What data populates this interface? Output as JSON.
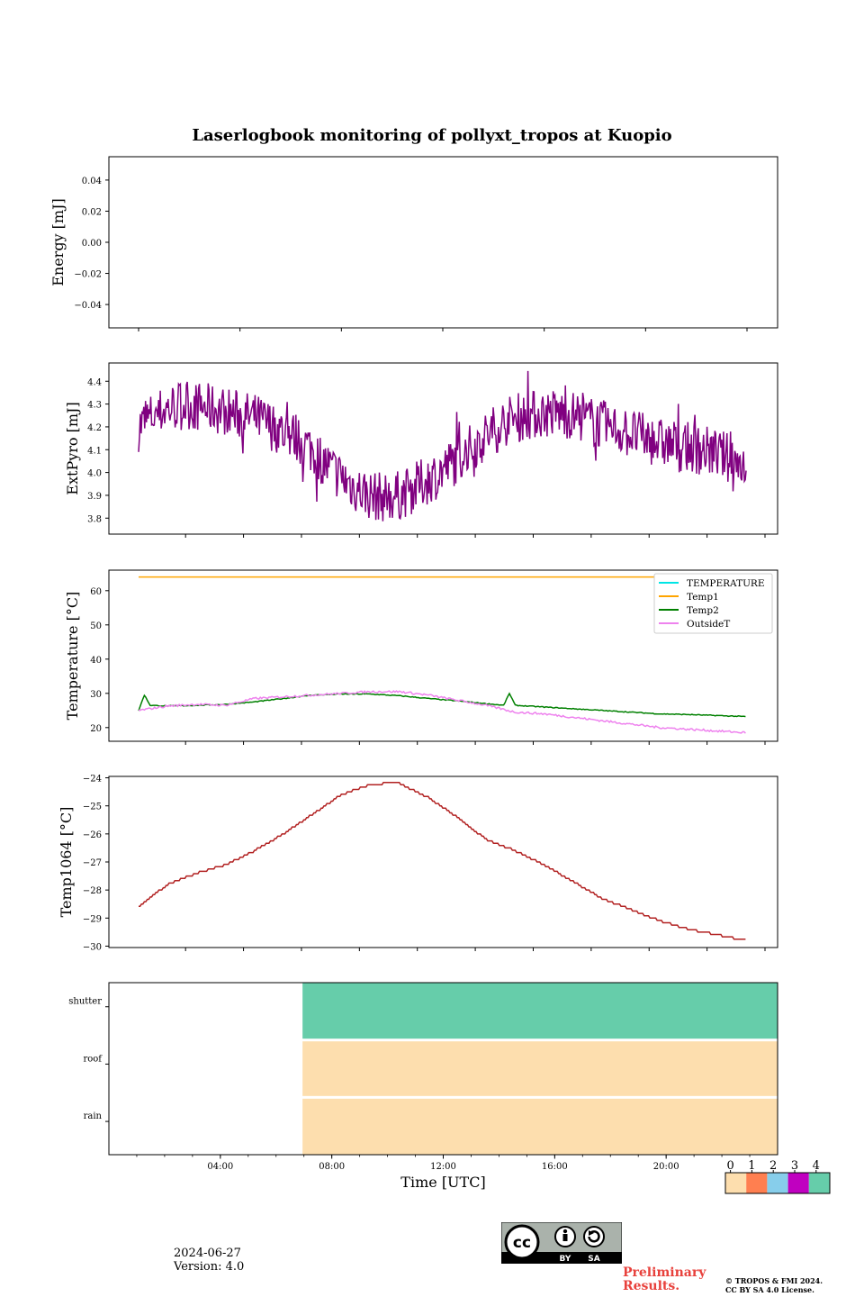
{
  "title": "Laserlogbook monitoring of pollyxt_tropos at Kuopio",
  "footer": {
    "date": "2024-06-27",
    "version": "Version: 4.0",
    "preliminary_line1": "Preliminary",
    "preliminary_line2": "Results.",
    "copyright_line1": "© TROPOS & FMI 2024.",
    "copyright_line2": "CC BY SA 4.0 License.",
    "license_badge_by": "BY",
    "license_badge_sa": "SA",
    "license_badge_cc": "cc"
  },
  "chart_data": [
    {
      "type": "line",
      "ylabel": "Energy [mJ]",
      "ylim": [
        -0.055,
        0.055
      ],
      "yticks": [
        0.04,
        0.02,
        0.0,
        -0.02,
        -0.04
      ],
      "ytick_labels": [
        "0.04",
        "0.02",
        "0.00",
        "−0.02",
        "−0.04"
      ],
      "series": []
    },
    {
      "type": "line",
      "ylabel": "ExtPyro [mJ]",
      "ylim": [
        3.73,
        4.48
      ],
      "yticks": [
        4.4,
        4.3,
        4.2,
        4.1,
        4.0,
        3.9,
        3.8
      ],
      "ytick_labels": [
        "4.4",
        "4.3",
        "4.2",
        "4.1",
        "4.0",
        "3.9",
        "3.8"
      ],
      "color": "#800080",
      "series": [
        {
          "x_hours": [
            1.0,
            1.5,
            2.0,
            2.5,
            3.0,
            3.5,
            4.0,
            4.5,
            5.0,
            5.5,
            6.0,
            6.5,
            7.0,
            7.5,
            8.0,
            8.5,
            9.0,
            9.5,
            10.0,
            10.5,
            11.0,
            11.5,
            12.0,
            12.5,
            13.0,
            13.5,
            14.0,
            14.5,
            15.0,
            15.5,
            16.0,
            16.5,
            17.0,
            17.5,
            18.0,
            18.5,
            19.0,
            19.5,
            20.0,
            20.5,
            21.0,
            21.5,
            22.0
          ],
          "values": [
            4.2,
            4.25,
            4.28,
            4.3,
            4.29,
            4.28,
            4.27,
            4.25,
            4.24,
            4.21,
            4.18,
            4.15,
            4.1,
            4.03,
            3.98,
            3.93,
            3.9,
            3.89,
            3.9,
            3.93,
            3.97,
            4.01,
            4.06,
            4.11,
            4.16,
            4.21,
            4.24,
            4.25,
            4.26,
            4.26,
            4.25,
            4.23,
            4.21,
            4.19,
            4.17,
            4.15,
            4.13,
            4.12,
            4.11,
            4.1,
            4.08,
            4.06,
            4.03
          ]
        }
      ]
    },
    {
      "type": "line",
      "ylabel": "Temperature [°C]",
      "ylim": [
        16,
        66
      ],
      "yticks": [
        60,
        50,
        40,
        30,
        20
      ],
      "ytick_labels": [
        "60",
        "50",
        "40",
        "30",
        "20"
      ],
      "legend_position": "top-right",
      "series": [
        {
          "name": "TEMPERATURE",
          "color": "#00e5e5",
          "x_hours": [],
          "values": []
        },
        {
          "name": "Temp1",
          "color": "#ffa500",
          "x_hours": [
            1.0,
            22.0
          ],
          "values": [
            64,
            64
          ]
        },
        {
          "name": "Temp2",
          "color": "#008000",
          "x_hours": [
            1.0,
            1.2,
            1.4,
            2.0,
            3.0,
            4.0,
            5.0,
            6.0,
            7.0,
            8.0,
            9.0,
            10.0,
            11.0,
            12.0,
            13.0,
            13.6,
            13.8,
            14.0,
            15.0,
            16.0,
            17.0,
            18.0,
            19.0,
            20.0,
            21.0,
            22.0
          ],
          "values": [
            25.0,
            29.5,
            26.5,
            26.3,
            26.5,
            26.8,
            27.5,
            28.5,
            29.5,
            29.8,
            29.8,
            29.3,
            28.5,
            27.8,
            27.0,
            26.5,
            30.0,
            26.5,
            26.0,
            25.5,
            25.0,
            24.5,
            24.0,
            23.8,
            23.5,
            23.2
          ]
        },
        {
          "name": "OutsideT",
          "color": "#ee82ee",
          "x_hours": [
            1.0,
            2.0,
            3.0,
            4.0,
            5.0,
            6.0,
            7.0,
            8.0,
            9.0,
            10.0,
            11.0,
            12.0,
            13.0,
            14.0,
            15.0,
            16.0,
            17.0,
            18.0,
            19.0,
            20.0,
            21.0,
            22.0
          ],
          "values": [
            25.0,
            26.3,
            26.8,
            26.5,
            28.5,
            29.0,
            29.5,
            30.0,
            30.5,
            30.5,
            29.5,
            28.0,
            26.5,
            24.5,
            24.0,
            23.0,
            22.0,
            21.0,
            20.0,
            19.5,
            19.0,
            18.5
          ]
        }
      ]
    },
    {
      "type": "line",
      "ylabel": "Temp1064 [°C]",
      "ylim": [
        -30.05,
        -23.95
      ],
      "yticks": [
        -24,
        -25,
        -26,
        -27,
        -28,
        -29,
        -30
      ],
      "ytick_labels": [
        "−24",
        "−25",
        "−26",
        "−27",
        "−28",
        "−29",
        "−30"
      ],
      "color": "#b22222",
      "series": [
        {
          "x_hours": [
            1.0,
            2.0,
            3.0,
            4.0,
            5.0,
            6.0,
            7.0,
            8.0,
            8.8,
            9.5,
            10.0,
            11.0,
            12.0,
            13.0,
            14.0,
            15.0,
            16.0,
            17.0,
            18.0,
            19.0,
            20.0,
            21.0,
            22.0
          ],
          "values": [
            -28.6,
            -27.8,
            -27.4,
            -27.1,
            -26.6,
            -26.0,
            -25.3,
            -24.6,
            -24.3,
            -24.2,
            -24.2,
            -24.7,
            -25.4,
            -26.2,
            -26.6,
            -27.1,
            -27.7,
            -28.3,
            -28.7,
            -29.1,
            -29.4,
            -29.6,
            -29.8
          ]
        }
      ]
    },
    {
      "type": "heatmap",
      "xlabel": "Time [UTC]",
      "xlim": [
        0,
        24
      ],
      "xticks": [
        "04:00",
        "08:00",
        "12:00",
        "16:00",
        "20:00"
      ],
      "xtick_hours": [
        4,
        8,
        12,
        16,
        20
      ],
      "rows": [
        "shutter",
        "roof",
        "rain"
      ],
      "blocks": [
        {
          "row": "shutter",
          "x_start_hours": 6.95,
          "x_end_hours": 24,
          "value": 4
        },
        {
          "row": "roof",
          "x_start_hours": 6.95,
          "x_end_hours": 24,
          "value": 0
        },
        {
          "row": "rain",
          "x_start_hours": 6.95,
          "x_end_hours": 24,
          "value": 0
        }
      ],
      "colorbar": {
        "labels": [
          "0",
          "1",
          "2",
          "3",
          "4"
        ],
        "colors": [
          "#fddeae",
          "#ff7f50",
          "#87ceeb",
          "#c000c0",
          "#66cdaa"
        ]
      }
    }
  ]
}
